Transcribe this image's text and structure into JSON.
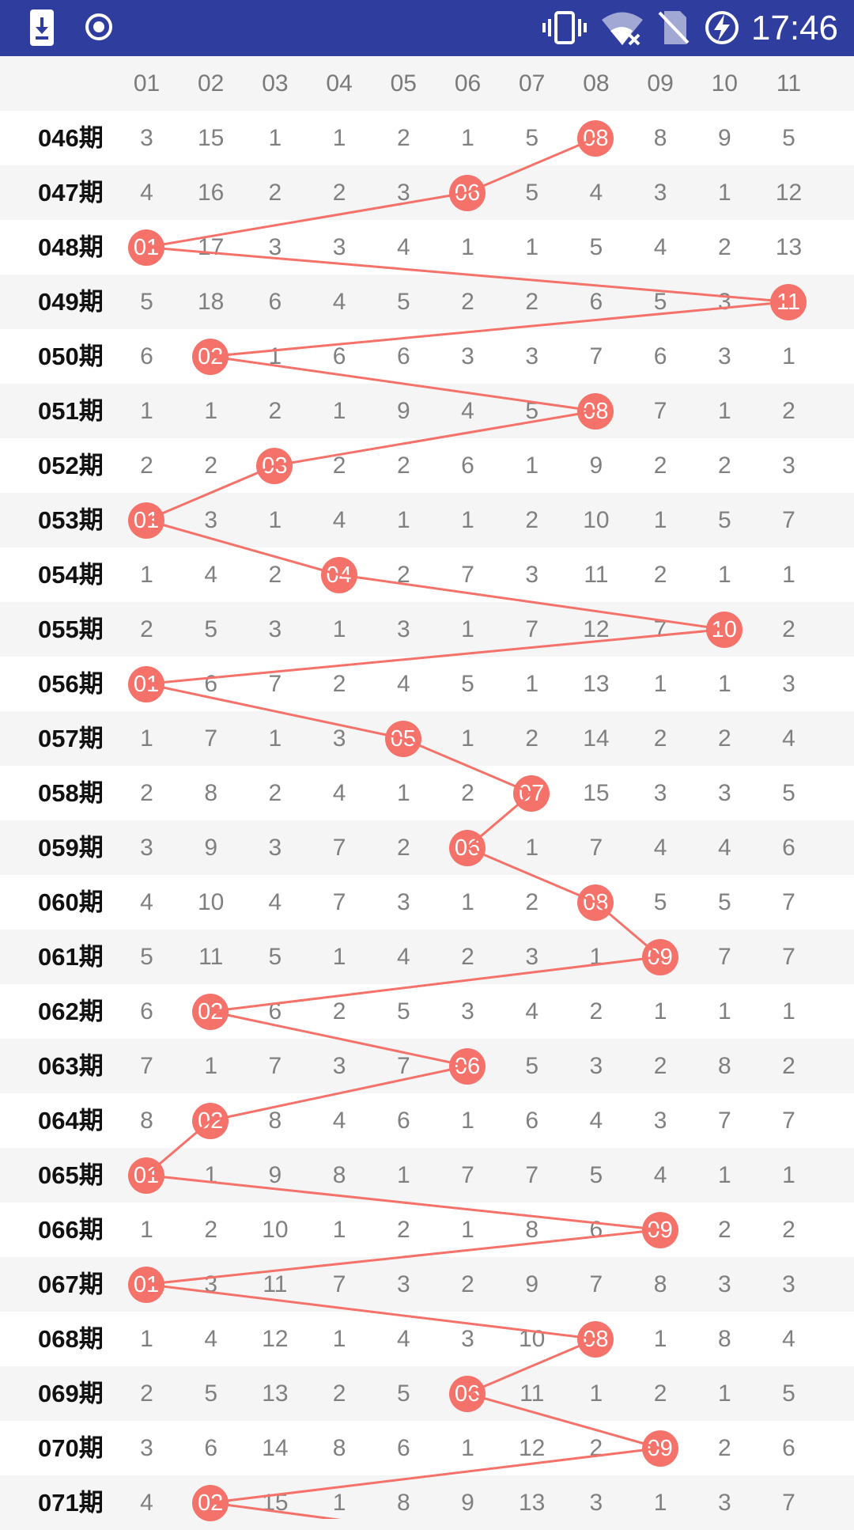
{
  "status_bar": {
    "time": "17:46",
    "icons": [
      "download-notification-icon",
      "record-icon",
      "vibrate-icon",
      "wifi-off-icon",
      "no-sim-icon",
      "battery-charging-icon"
    ]
  },
  "colors": {
    "status_bar": "#2f3e9e",
    "hit_ball": "#f5726a",
    "line": "#f5726a"
  },
  "columns": [
    "01",
    "02",
    "03",
    "04",
    "05",
    "06",
    "07",
    "08",
    "09",
    "10",
    "11"
  ],
  "rows": [
    {
      "period": "046期",
      "cells": [
        "3",
        "15",
        "1",
        "1",
        "2",
        "1",
        "5",
        "08",
        "8",
        "9",
        "5"
      ],
      "hit": 7
    },
    {
      "period": "047期",
      "cells": [
        "4",
        "16",
        "2",
        "2",
        "3",
        "06",
        "5",
        "4",
        "3",
        "1",
        "12"
      ],
      "hit": 5
    },
    {
      "period": "048期",
      "cells": [
        "01",
        "17",
        "3",
        "3",
        "4",
        "1",
        "1",
        "5",
        "4",
        "2",
        "13"
      ],
      "hit": 0
    },
    {
      "period": "049期",
      "cells": [
        "5",
        "18",
        "6",
        "4",
        "5",
        "2",
        "2",
        "6",
        "5",
        "3",
        "11"
      ],
      "hit": 10
    },
    {
      "period": "050期",
      "cells": [
        "6",
        "02",
        "1",
        "6",
        "6",
        "3",
        "3",
        "7",
        "6",
        "3",
        "1"
      ],
      "hit": 1
    },
    {
      "period": "051期",
      "cells": [
        "1",
        "1",
        "2",
        "1",
        "9",
        "4",
        "5",
        "08",
        "7",
        "1",
        "2"
      ],
      "hit": 7
    },
    {
      "period": "052期",
      "cells": [
        "2",
        "2",
        "03",
        "2",
        "2",
        "6",
        "1",
        "9",
        "2",
        "2",
        "3"
      ],
      "hit": 2
    },
    {
      "period": "053期",
      "cells": [
        "01",
        "3",
        "1",
        "4",
        "1",
        "1",
        "2",
        "10",
        "1",
        "5",
        "7"
      ],
      "hit": 0
    },
    {
      "period": "054期",
      "cells": [
        "1",
        "4",
        "2",
        "04",
        "2",
        "7",
        "3",
        "11",
        "2",
        "1",
        "1"
      ],
      "hit": 3
    },
    {
      "period": "055期",
      "cells": [
        "2",
        "5",
        "3",
        "1",
        "3",
        "1",
        "7",
        "12",
        "7",
        "10",
        "2"
      ],
      "hit": 9
    },
    {
      "period": "056期",
      "cells": [
        "01",
        "6",
        "7",
        "2",
        "4",
        "5",
        "1",
        "13",
        "1",
        "1",
        "3"
      ],
      "hit": 0
    },
    {
      "period": "057期",
      "cells": [
        "1",
        "7",
        "1",
        "3",
        "05",
        "1",
        "2",
        "14",
        "2",
        "2",
        "4"
      ],
      "hit": 4
    },
    {
      "period": "058期",
      "cells": [
        "2",
        "8",
        "2",
        "4",
        "1",
        "2",
        "07",
        "15",
        "3",
        "3",
        "5"
      ],
      "hit": 6
    },
    {
      "period": "059期",
      "cells": [
        "3",
        "9",
        "3",
        "7",
        "2",
        "06",
        "1",
        "7",
        "4",
        "4",
        "6"
      ],
      "hit": 5
    },
    {
      "period": "060期",
      "cells": [
        "4",
        "10",
        "4",
        "7",
        "3",
        "1",
        "2",
        "08",
        "5",
        "5",
        "7"
      ],
      "hit": 7
    },
    {
      "period": "061期",
      "cells": [
        "5",
        "11",
        "5",
        "1",
        "4",
        "2",
        "3",
        "1",
        "09",
        "7",
        "7"
      ],
      "hit": 8
    },
    {
      "period": "062期",
      "cells": [
        "6",
        "02",
        "6",
        "2",
        "5",
        "3",
        "4",
        "2",
        "1",
        "1",
        "1"
      ],
      "hit": 1
    },
    {
      "period": "063期",
      "cells": [
        "7",
        "1",
        "7",
        "3",
        "7",
        "06",
        "5",
        "3",
        "2",
        "8",
        "2"
      ],
      "hit": 5
    },
    {
      "period": "064期",
      "cells": [
        "8",
        "02",
        "8",
        "4",
        "6",
        "1",
        "6",
        "4",
        "3",
        "7",
        "7"
      ],
      "hit": 1
    },
    {
      "period": "065期",
      "cells": [
        "01",
        "1",
        "9",
        "8",
        "1",
        "7",
        "7",
        "5",
        "4",
        "1",
        "1"
      ],
      "hit": 0
    },
    {
      "period": "066期",
      "cells": [
        "1",
        "2",
        "10",
        "1",
        "2",
        "1",
        "8",
        "6",
        "09",
        "2",
        "2"
      ],
      "hit": 8
    },
    {
      "period": "067期",
      "cells": [
        "01",
        "3",
        "11",
        "7",
        "3",
        "2",
        "9",
        "7",
        "8",
        "3",
        "3"
      ],
      "hit": 0
    },
    {
      "period": "068期",
      "cells": [
        "1",
        "4",
        "12",
        "1",
        "4",
        "3",
        "10",
        "08",
        "1",
        "8",
        "4"
      ],
      "hit": 7
    },
    {
      "period": "069期",
      "cells": [
        "2",
        "5",
        "13",
        "2",
        "5",
        "06",
        "11",
        "1",
        "2",
        "1",
        "5"
      ],
      "hit": 5
    },
    {
      "period": "070期",
      "cells": [
        "3",
        "6",
        "14",
        "8",
        "6",
        "1",
        "12",
        "2",
        "09",
        "2",
        "6"
      ],
      "hit": 8
    },
    {
      "period": "071期",
      "cells": [
        "4",
        "02",
        "15",
        "1",
        "8",
        "9",
        "13",
        "3",
        "1",
        "3",
        "7"
      ],
      "hit": 1
    }
  ]
}
